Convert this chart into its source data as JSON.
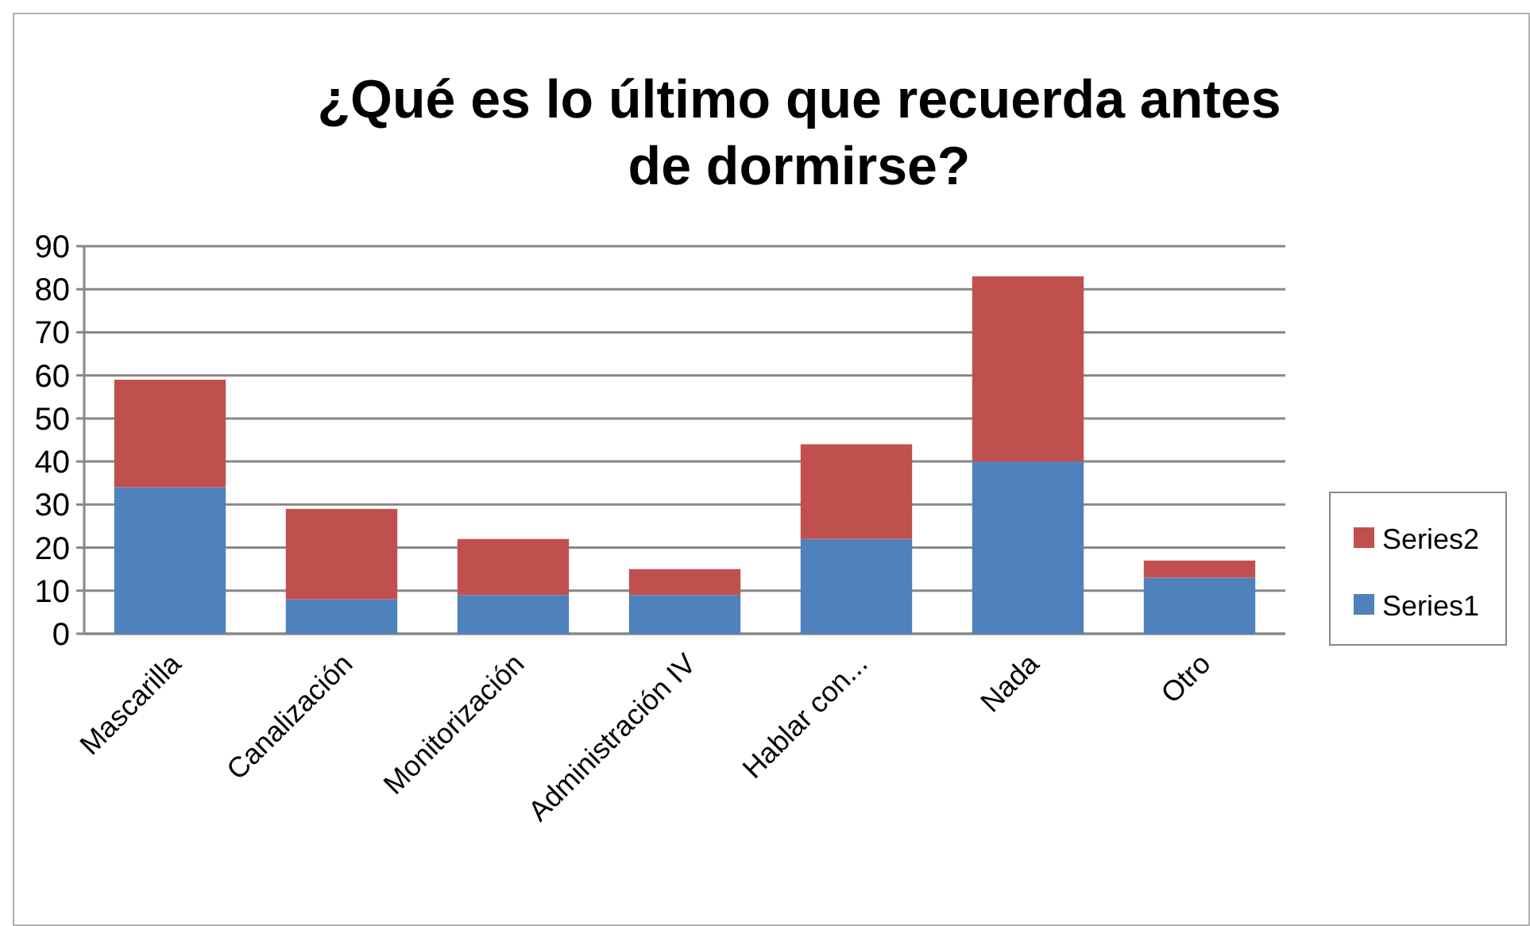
{
  "chart_data": {
    "type": "bar",
    "title": "¿Qué es lo último que recuerda antes de dormirse?",
    "categories": [
      "Mascarilla",
      "Canalización",
      "Monitorización",
      "Administración IV",
      "Hablar con...",
      "Nada",
      "Otro"
    ],
    "series": [
      {
        "name": "Series1",
        "color": "#4f81bd",
        "values": [
          34,
          8,
          9,
          9,
          22,
          40,
          13
        ]
      },
      {
        "name": "Series2",
        "color": "#c0504d",
        "values": [
          25,
          21,
          13,
          6,
          22,
          43,
          4
        ]
      }
    ],
    "stacked": true,
    "ylim": [
      0,
      90
    ],
    "yticks": [
      0,
      10,
      20,
      30,
      40,
      50,
      60,
      70,
      80,
      90
    ],
    "grid": "y",
    "legend": "right"
  }
}
